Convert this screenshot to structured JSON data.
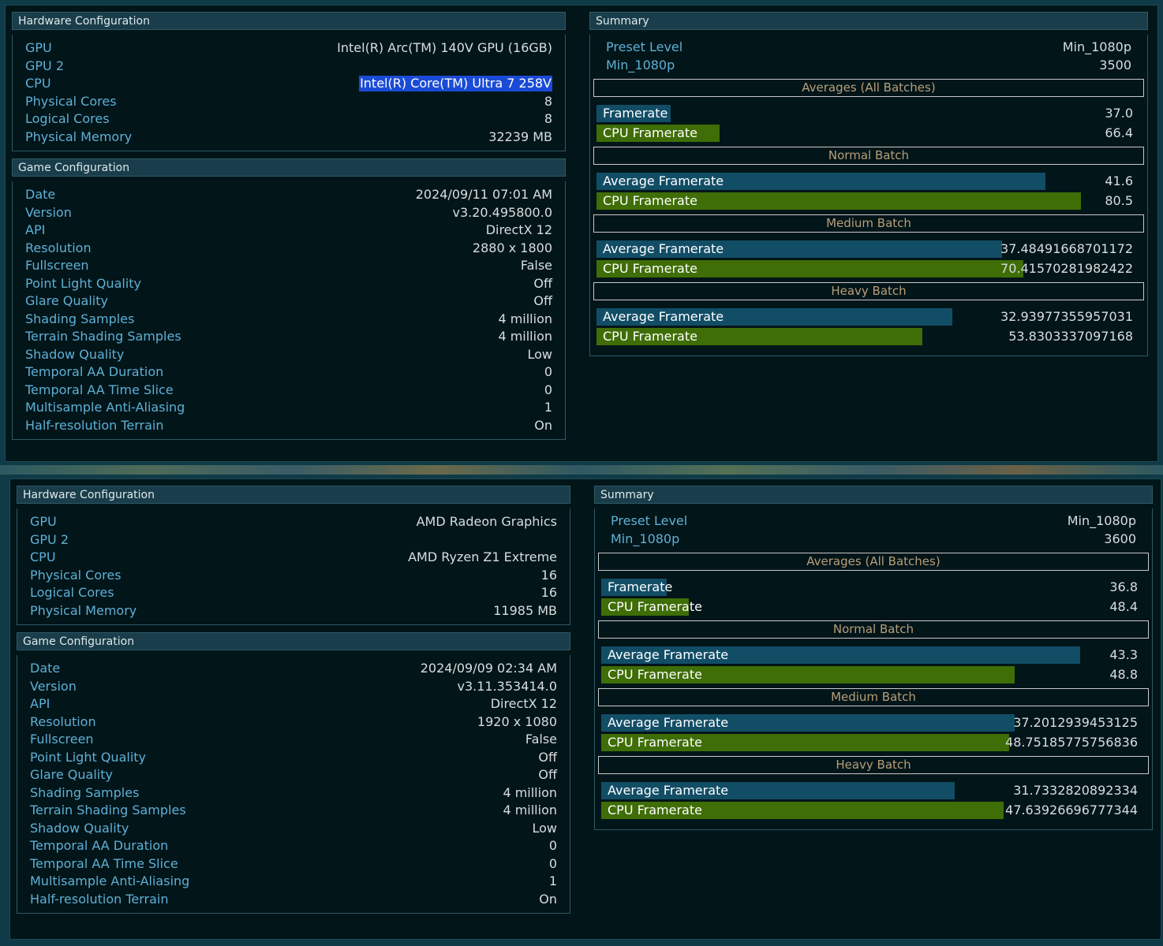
{
  "bench1": {
    "hardware": {
      "title": "Hardware Configuration",
      "rows": [
        {
          "k": "GPU",
          "v": "Intel(R) Arc(TM) 140V GPU (16GB)"
        },
        {
          "k": "GPU 2",
          "v": ""
        },
        {
          "k": "CPU",
          "v": "Intel(R) Core(TM) Ultra 7 258V",
          "selected": true
        },
        {
          "k": "Physical Cores",
          "v": "8"
        },
        {
          "k": "Logical Cores",
          "v": "8"
        },
        {
          "k": "Physical Memory",
          "v": "32239 MB"
        }
      ]
    },
    "game": {
      "title": "Game Configuration",
      "rows": [
        {
          "k": "Date",
          "v": "2024/09/11 07:01 AM"
        },
        {
          "k": "Version",
          "v": "v3.20.495800.0"
        },
        {
          "k": "API",
          "v": "DirectX 12"
        },
        {
          "k": "Resolution",
          "v": "2880 x 1800"
        },
        {
          "k": "Fullscreen",
          "v": "False"
        },
        {
          "k": "Point Light Quality",
          "v": "Off"
        },
        {
          "k": "Glare Quality",
          "v": "Off"
        },
        {
          "k": "Shading Samples",
          "v": "4 million"
        },
        {
          "k": "Terrain Shading Samples",
          "v": "4 million"
        },
        {
          "k": "Shadow Quality",
          "v": "Low"
        },
        {
          "k": "Temporal AA Duration",
          "v": "0"
        },
        {
          "k": "Temporal AA Time Slice",
          "v": "0"
        },
        {
          "k": "Multisample Anti-Aliasing",
          "v": "1"
        },
        {
          "k": "Half-resolution Terrain",
          "v": "On"
        }
      ]
    },
    "summary": {
      "title": "Summary",
      "preset": [
        {
          "k": "Preset Level",
          "v": "Min_1080p"
        },
        {
          "k": "Min_1080p",
          "v": "3500"
        }
      ],
      "batches": [
        {
          "title": "Averages (All Batches)",
          "bars": [
            {
              "label": "Framerate",
              "value": "37.0",
              "fill": 0.135,
              "kind": "avg"
            },
            {
              "label": "CPU Framerate",
              "value": "66.4",
              "fill": 0.225,
              "kind": "cpu"
            }
          ]
        },
        {
          "title": "Normal Batch",
          "bars": [
            {
              "label": "Average Framerate",
              "value": "41.6",
              "fill": 0.82,
              "kind": "avg"
            },
            {
              "label": "CPU Framerate",
              "value": "80.5",
              "fill": 0.885,
              "kind": "cpu"
            }
          ]
        },
        {
          "title": "Medium Batch",
          "bars": [
            {
              "label": "Average Framerate",
              "value": "37.48491668701172",
              "fill": 0.74,
              "kind": "avg"
            },
            {
              "label": "CPU Framerate",
              "value": "70.41570281982422",
              "fill": 0.78,
              "kind": "cpu"
            }
          ]
        },
        {
          "title": "Heavy Batch",
          "bars": [
            {
              "label": "Average Framerate",
              "value": "32.93977355957031",
              "fill": 0.65,
              "kind": "avg"
            },
            {
              "label": "CPU Framerate",
              "value": "53.8303337097168",
              "fill": 0.595,
              "kind": "cpu"
            }
          ]
        }
      ]
    }
  },
  "bench2": {
    "hardware": {
      "title": "Hardware Configuration",
      "rows": [
        {
          "k": "GPU",
          "v": "AMD Radeon Graphics"
        },
        {
          "k": "GPU 2",
          "v": ""
        },
        {
          "k": "CPU",
          "v": "AMD Ryzen Z1 Extreme"
        },
        {
          "k": "Physical Cores",
          "v": "16"
        },
        {
          "k": "Logical Cores",
          "v": "16"
        },
        {
          "k": "Physical Memory",
          "v": "11985 MB"
        }
      ]
    },
    "game": {
      "title": "Game Configuration",
      "rows": [
        {
          "k": "Date",
          "v": "2024/09/09 02:34 AM"
        },
        {
          "k": "Version",
          "v": "v3.11.353414.0"
        },
        {
          "k": "API",
          "v": "DirectX 12"
        },
        {
          "k": "Resolution",
          "v": "1920 x 1080"
        },
        {
          "k": "Fullscreen",
          "v": "False"
        },
        {
          "k": "Point Light Quality",
          "v": "Off"
        },
        {
          "k": "Glare Quality",
          "v": "Off"
        },
        {
          "k": "Shading Samples",
          "v": "4 million"
        },
        {
          "k": "Terrain Shading Samples",
          "v": "4 million"
        },
        {
          "k": "Shadow Quality",
          "v": "Low"
        },
        {
          "k": "Temporal AA Duration",
          "v": "0"
        },
        {
          "k": "Temporal AA Time Slice",
          "v": "0"
        },
        {
          "k": "Multisample Anti-Aliasing",
          "v": "1"
        },
        {
          "k": "Half-resolution Terrain",
          "v": "On"
        }
      ]
    },
    "summary": {
      "title": "Summary",
      "preset": [
        {
          "k": "Preset Level",
          "v": "Min_1080p"
        },
        {
          "k": "Min_1080p",
          "v": "3600"
        }
      ],
      "batches": [
        {
          "title": "Averages (All Batches)",
          "bars": [
            {
              "label": "Framerate",
              "value": "36.8",
              "fill": 0.12,
              "kind": "avg"
            },
            {
              "label": "CPU Framerate",
              "value": "48.4",
              "fill": 0.16,
              "kind": "cpu"
            }
          ]
        },
        {
          "title": "Normal Batch",
          "bars": [
            {
              "label": "Average Framerate",
              "value": "43.3",
              "fill": 0.875,
              "kind": "avg"
            },
            {
              "label": "CPU Framerate",
              "value": "48.8",
              "fill": 0.755,
              "kind": "cpu"
            }
          ]
        },
        {
          "title": "Medium Batch",
          "bars": [
            {
              "label": "Average Framerate",
              "value": "37.2012939453125",
              "fill": 0.755,
              "kind": "avg"
            },
            {
              "label": "CPU Framerate",
              "value": "48.75185775756836",
              "fill": 0.745,
              "kind": "cpu"
            }
          ]
        },
        {
          "title": "Heavy Batch",
          "bars": [
            {
              "label": "Average Framerate",
              "value": "31.7332820892334",
              "fill": 0.645,
              "kind": "avg"
            },
            {
              "label": "CPU Framerate",
              "value": "47.63926696777344",
              "fill": 0.735,
              "kind": "cpu"
            }
          ]
        }
      ]
    }
  }
}
